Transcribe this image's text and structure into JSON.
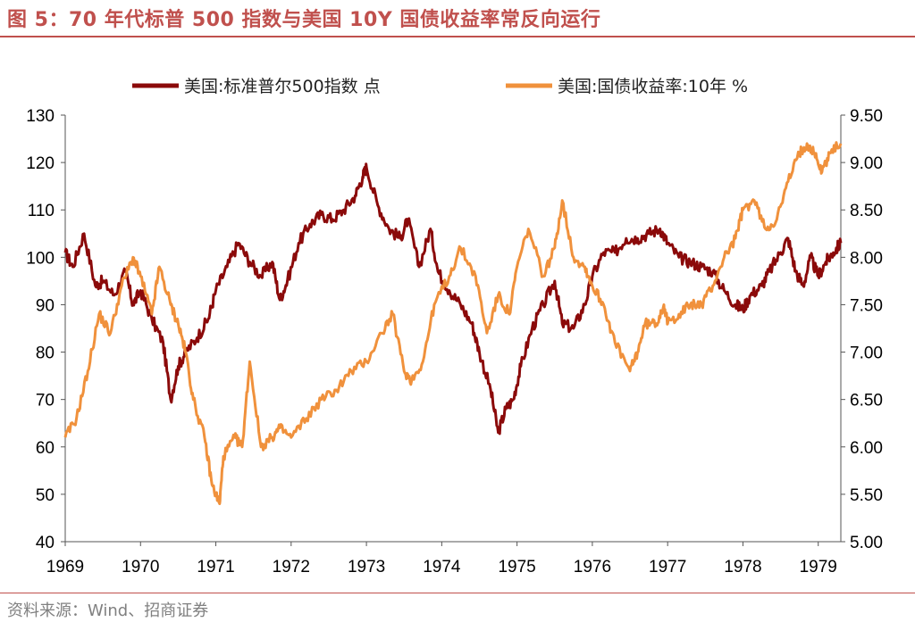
{
  "figure": {
    "title": "图 5：70 年代标普 500 指数与美国 10Y 国债收益率常反向运行",
    "source": "资料来源：Wind、招商证券"
  },
  "colors": {
    "sp500": "#8B0A0A",
    "yield": "#F0913C",
    "accent": "#C0504D"
  },
  "chart_data": {
    "type": "line",
    "title": "",
    "xlabel": "",
    "ylabel": "",
    "x_ticks": [
      "1969",
      "1970",
      "1971",
      "1972",
      "1973",
      "1974",
      "1975",
      "1976",
      "1977",
      "1978",
      "1979"
    ],
    "xlim": [
      1969.0,
      1979.3
    ],
    "ylim_left": [
      40,
      130
    ],
    "ylim_right": [
      5.0,
      9.5
    ],
    "left_ticks": [
      "40",
      "50",
      "60",
      "70",
      "80",
      "90",
      "100",
      "110",
      "120",
      "130"
    ],
    "right_ticks": [
      "5.00",
      "5.50",
      "6.00",
      "6.50",
      "7.00",
      "7.50",
      "8.00",
      "8.50",
      "9.00",
      "9.50"
    ],
    "grid": false,
    "legend_position": "top",
    "series": [
      {
        "name": "美国:标准普尔500指数 点",
        "axis": "left",
        "x": [
          1969.0,
          1969.1,
          1969.25,
          1969.4,
          1969.5,
          1969.65,
          1969.8,
          1969.9,
          1970.0,
          1970.15,
          1970.3,
          1970.4,
          1970.5,
          1970.6,
          1970.75,
          1970.9,
          1971.0,
          1971.15,
          1971.3,
          1971.45,
          1971.6,
          1971.75,
          1971.85,
          1971.95,
          1972.1,
          1972.25,
          1972.4,
          1972.55,
          1972.7,
          1972.85,
          1972.95,
          1973.0,
          1973.15,
          1973.3,
          1973.45,
          1973.55,
          1973.7,
          1973.85,
          1973.95,
          1974.1,
          1974.25,
          1974.4,
          1974.5,
          1974.65,
          1974.75,
          1974.85,
          1974.95,
          1975.05,
          1975.2,
          1975.35,
          1975.5,
          1975.6,
          1975.75,
          1975.9,
          1976.0,
          1976.15,
          1976.3,
          1976.45,
          1976.6,
          1976.75,
          1976.9,
          1977.0,
          1977.15,
          1977.3,
          1977.45,
          1977.6,
          1977.75,
          1977.9,
          1978.0,
          1978.1,
          1978.25,
          1978.35,
          1978.5,
          1978.6,
          1978.7,
          1978.8,
          1978.9,
          1979.0,
          1979.1,
          1979.2,
          1979.3
        ],
        "values": [
          101,
          98,
          105,
          94,
          95,
          92,
          97,
          90,
          93,
          87,
          82,
          70,
          77,
          80,
          83,
          87,
          93,
          98,
          103,
          99,
          96,
          99,
          91,
          95,
          103,
          107,
          109,
          108,
          110,
          113,
          117,
          119,
          111,
          106,
          104,
          108,
          98,
          106,
          97,
          93,
          90,
          86,
          80,
          72,
          63,
          68,
          70,
          77,
          85,
          90,
          95,
          86,
          85,
          90,
          96,
          101,
          101,
          104,
          104,
          105,
          106,
          103,
          100,
          99,
          98,
          97,
          93,
          90,
          89,
          92,
          94,
          97,
          101,
          104,
          97,
          94,
          100,
          96,
          99,
          101,
          103
        ]
      },
      {
        "name": "美国:国债收益率:10年 %",
        "axis": "right",
        "x": [
          1969.0,
          1969.15,
          1969.3,
          1969.45,
          1969.6,
          1969.75,
          1969.9,
          1970.0,
          1970.15,
          1970.25,
          1970.4,
          1970.5,
          1970.6,
          1970.7,
          1970.85,
          1970.95,
          1971.05,
          1971.1,
          1971.25,
          1971.35,
          1971.45,
          1971.6,
          1971.75,
          1971.85,
          1972.0,
          1972.2,
          1972.4,
          1972.6,
          1972.8,
          1973.0,
          1973.2,
          1973.35,
          1973.5,
          1973.6,
          1973.75,
          1973.9,
          1974.1,
          1974.25,
          1974.45,
          1974.6,
          1974.75,
          1974.9,
          1975.0,
          1975.15,
          1975.35,
          1975.5,
          1975.6,
          1975.75,
          1975.9,
          1976.0,
          1976.15,
          1976.3,
          1976.5,
          1976.6,
          1976.7,
          1976.85,
          1976.95,
          1977.0,
          1977.15,
          1977.3,
          1977.45,
          1977.6,
          1977.75,
          1977.9,
          1978.0,
          1978.15,
          1978.3,
          1978.45,
          1978.6,
          1978.75,
          1978.85,
          1978.95,
          1979.05,
          1979.15,
          1979.3
        ],
        "values": [
          6.1,
          6.3,
          6.8,
          7.4,
          7.2,
          7.7,
          8.0,
          7.8,
          7.4,
          7.9,
          7.5,
          7.3,
          7.0,
          6.5,
          6.1,
          5.6,
          5.4,
          5.9,
          6.1,
          6.0,
          6.9,
          6.0,
          6.1,
          6.2,
          6.1,
          6.3,
          6.5,
          6.6,
          6.8,
          6.9,
          7.2,
          7.4,
          6.8,
          6.7,
          6.9,
          7.5,
          7.8,
          8.1,
          7.8,
          7.2,
          7.6,
          7.4,
          7.9,
          8.3,
          7.8,
          8.1,
          8.6,
          8.0,
          7.9,
          7.7,
          7.5,
          7.1,
          6.8,
          7.0,
          7.3,
          7.3,
          7.5,
          7.3,
          7.4,
          7.5,
          7.5,
          7.7,
          8.0,
          8.2,
          8.5,
          8.6,
          8.3,
          8.4,
          8.8,
          9.1,
          9.2,
          9.1,
          8.9,
          9.1,
          9.2
        ]
      }
    ]
  }
}
